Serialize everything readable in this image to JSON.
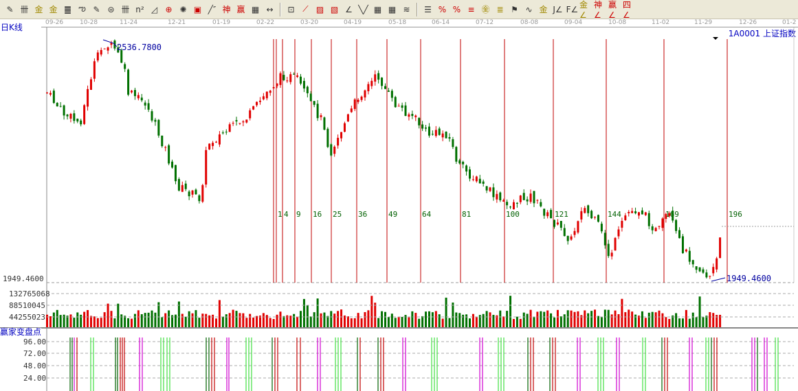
{
  "toolbar": {
    "icons": [
      "pen-icon",
      "grid-icon",
      "gold-1-icon",
      "gold-2-icon",
      "f-grid-icon",
      "spiral-icon",
      "pen-ruler-icon",
      "circle-grid-icon",
      "grid2-icon",
      "n2-grid-icon",
      "triangle-icon",
      "target-icon",
      "compass-icon",
      "square-target-icon",
      "line-mark-icon",
      "shen-icon",
      "ying-icon",
      "calendar-grid-icon",
      "range-icon",
      "box-icon",
      "fan-icon",
      "box-fan-icon",
      "square-fan-icon",
      "angle-icon",
      "v-icon",
      "grid3-icon",
      "grid4-icon",
      "parallel-icon",
      "list-icon",
      "percent-box-icon",
      "percent-icon",
      "percent-lines-icon",
      "gold-coin-icon",
      "gold-lines-icon",
      "candle-pen-icon",
      "wave-icon",
      "gold-box-icon",
      "j-angle-icon",
      "f-angle-icon",
      "gold-angle-icon",
      "shen-angle-icon",
      "ying-angle-icon",
      "four-angle-icon"
    ],
    "glyphs": [
      "✎",
      "卌",
      "金",
      "金",
      "䷀",
      "ఌ",
      "✎",
      "⊜",
      "卌",
      "n²",
      "◿",
      "⊕",
      "✺",
      "▣",
      "╱″",
      "神",
      "赢",
      "▦",
      "↔",
      "⊡",
      "⟋",
      "▨",
      "▧",
      "∠",
      "╲╱",
      "▦",
      "▦",
      "≋",
      "☰",
      "%",
      "%",
      "≡",
      "㊎",
      "≣",
      "⚑",
      "∿",
      "金",
      "J∠",
      "F∠",
      "金∠",
      "神∠",
      "赢∠",
      "四∠"
    ]
  },
  "chart": {
    "period_label": "日K线",
    "stock_label": "1A0001  上证指数",
    "high_label": "2536.7800",
    "low_label": "1949.4600",
    "low_axis_label": "1949.4600",
    "dates": [
      "09-26",
      "10-28",
      "11-24",
      "12-21",
      "01-19",
      "02-22",
      "03-20",
      "04-19",
      "05-18",
      "06-14",
      "07-12",
      "08-08",
      "09-04",
      "10-08",
      "11-02",
      "11-29",
      "12-26",
      "01-2"
    ],
    "fib_labels": [
      "1",
      "4",
      "9",
      "16",
      "25",
      "36",
      "49",
      "64",
      "81",
      "100",
      "121",
      "144",
      "169",
      "196"
    ],
    "up_color": "#e00000",
    "down_color": "#007000"
  },
  "volume": {
    "ticks": [
      "132765068",
      "88510045",
      "44255023"
    ]
  },
  "indicator": {
    "title": "赢家变盘点",
    "ticks": [
      "96.00",
      "72.00",
      "48.00",
      "24.00"
    ]
  }
}
